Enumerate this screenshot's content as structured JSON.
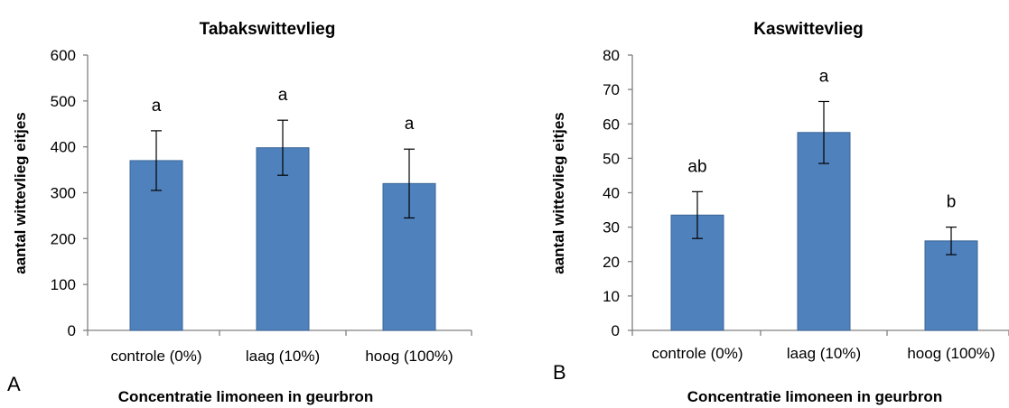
{
  "chart_data": [
    {
      "type": "bar",
      "panel_label": "A",
      "title": "Tabakswittevlieg",
      "xlabel": "Concentratie limoneen in geurbron",
      "ylabel": "aantal wittevlieg eitjes",
      "ylim": [
        0,
        600
      ],
      "yticks": [
        "0",
        "100",
        "200",
        "300",
        "400",
        "500",
        "600"
      ],
      "categories": [
        "controle (0%)",
        "laag (10%)",
        "hoog (100%)"
      ],
      "values": [
        370,
        398,
        320
      ],
      "error": [
        65,
        60,
        75
      ],
      "significance": [
        "a",
        "a",
        "a"
      ],
      "bar_color": "#4f81bd",
      "grid": false
    },
    {
      "type": "bar",
      "panel_label": "B",
      "title": "Kaswittevlieg",
      "xlabel": "Concentratie limoneen in geurbron",
      "ylabel": "aantal wittevlieg eitjes",
      "ylim": [
        0,
        80
      ],
      "yticks": [
        "0",
        "10",
        "20",
        "30",
        "40",
        "50",
        "60",
        "70",
        "80"
      ],
      "categories": [
        "controle (0%)",
        "laag (10%)",
        "hoog (100%)"
      ],
      "values": [
        33.5,
        57.5,
        26
      ],
      "error": [
        6.8,
        9,
        4
      ],
      "significance": [
        "ab",
        "a",
        "b"
      ],
      "bar_color": "#4f81bd",
      "grid": false
    }
  ]
}
